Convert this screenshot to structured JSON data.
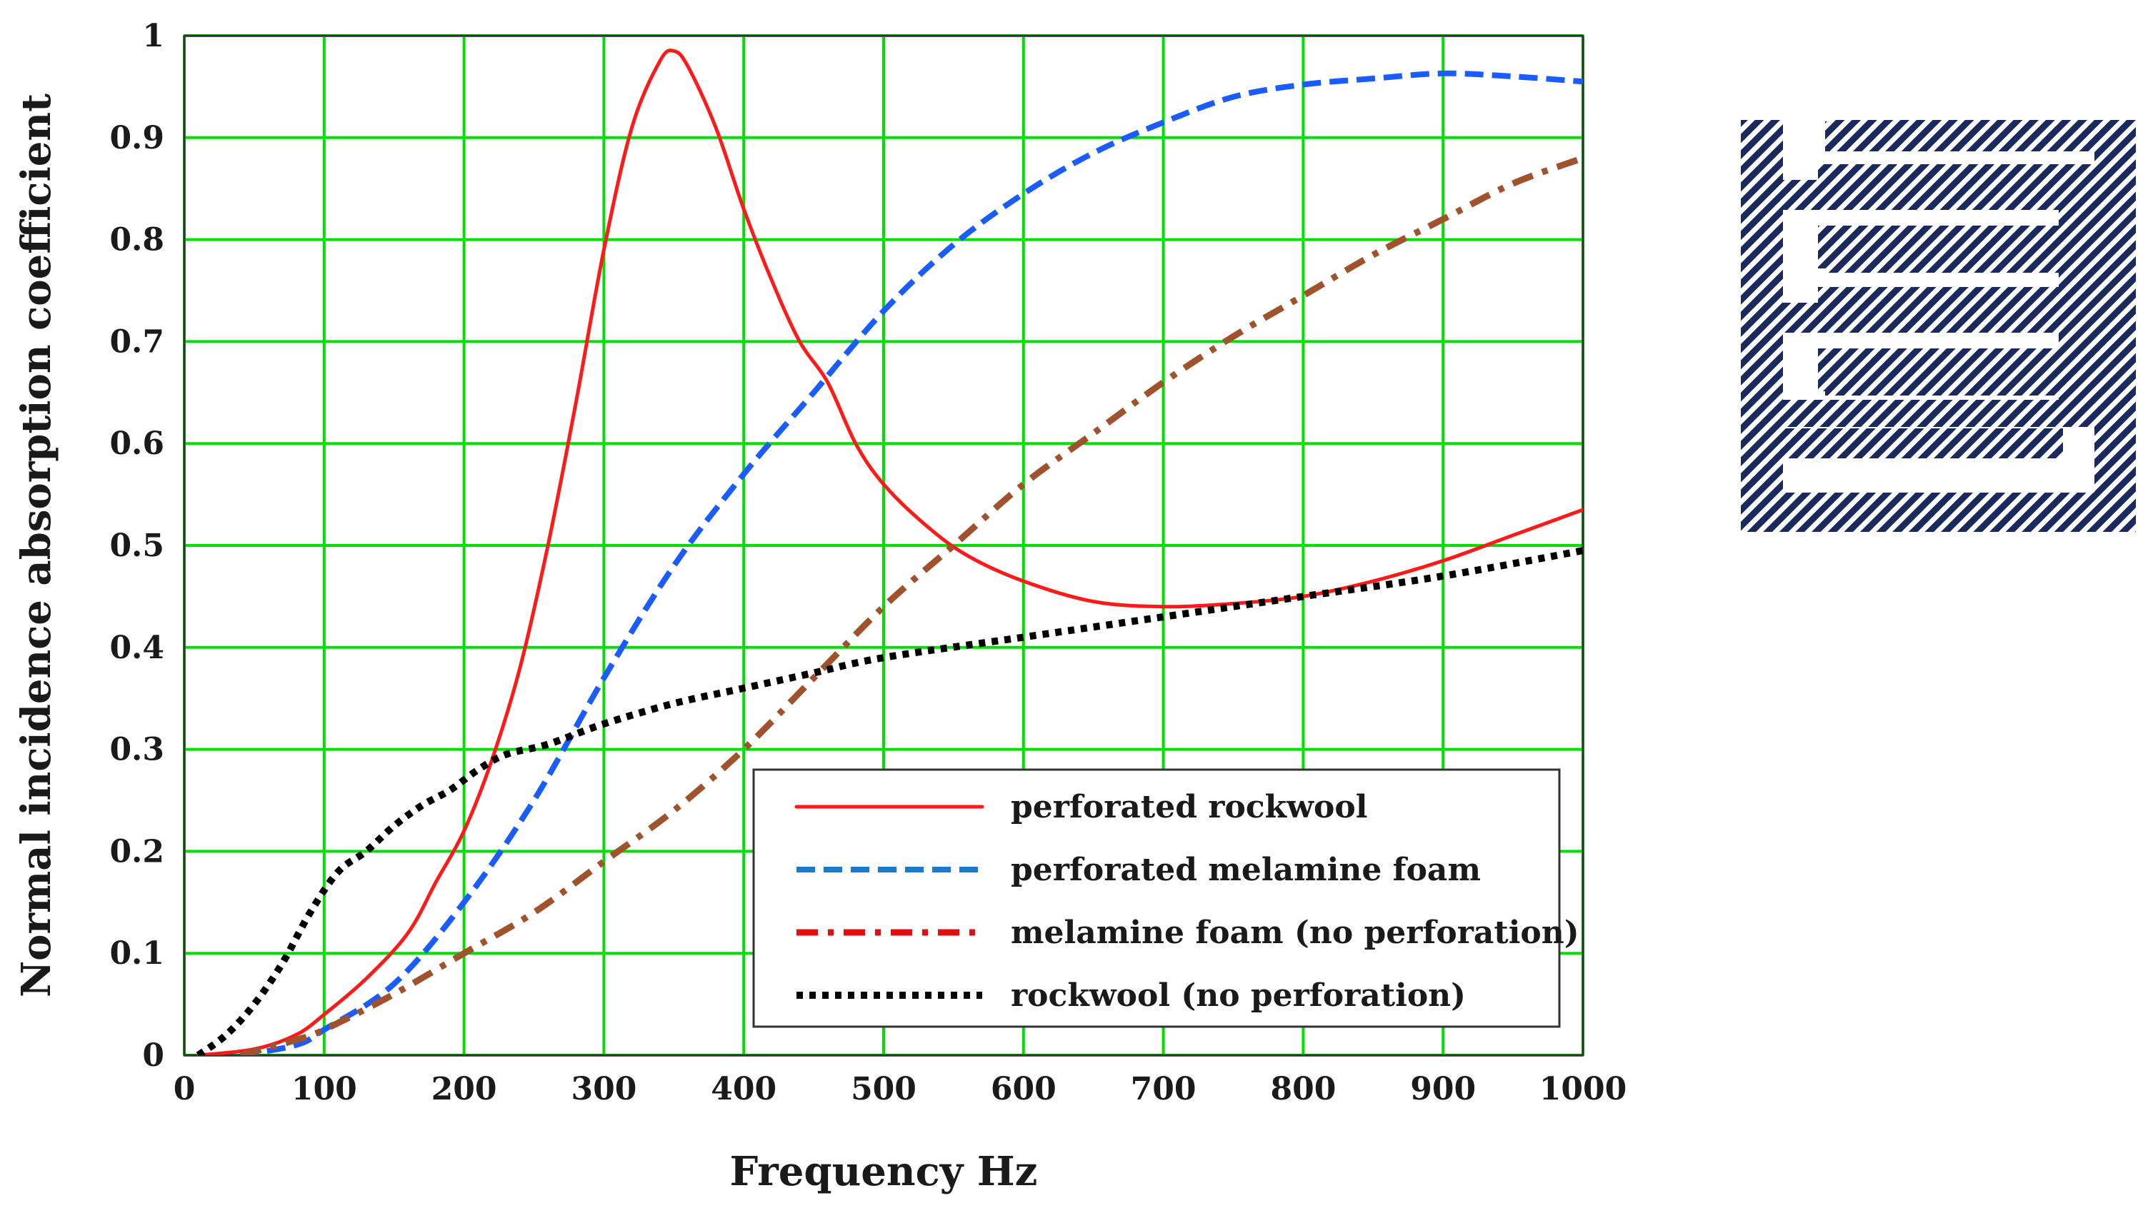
{
  "chart_data": {
    "type": "line",
    "title": "",
    "xlabel": "Frequency Hz",
    "ylabel": "Normal incidence absorption coefficient",
    "xlim": [
      0,
      1000
    ],
    "ylim": [
      0,
      1
    ],
    "xticks": [
      0,
      100,
      200,
      300,
      400,
      500,
      600,
      700,
      800,
      900,
      1000
    ],
    "yticks": [
      0,
      0.1,
      0.2,
      0.3,
      0.4,
      0.5,
      0.6,
      0.7,
      0.8,
      0.9,
      1
    ],
    "xtick_labels": [
      "0",
      "100",
      "200",
      "300",
      "400",
      "500",
      "600",
      "700",
      "800",
      "900",
      "1000"
    ],
    "ytick_labels": [
      "0",
      "0.1",
      "0.2",
      "0.3",
      "0.4",
      "0.5",
      "0.6",
      "0.7",
      "0.8",
      "0.9",
      "1"
    ],
    "grid": true,
    "grid_color": "#00e000",
    "legend_position": "bottom-right",
    "series": [
      {
        "name": "perforated rockwool",
        "color": "#ff1a1a",
        "dash": "solid",
        "points": [
          [
            10,
            0
          ],
          [
            50,
            0.006
          ],
          [
            80,
            0.02
          ],
          [
            100,
            0.04
          ],
          [
            130,
            0.075
          ],
          [
            160,
            0.12
          ],
          [
            180,
            0.17
          ],
          [
            200,
            0.22
          ],
          [
            220,
            0.29
          ],
          [
            240,
            0.38
          ],
          [
            260,
            0.5
          ],
          [
            280,
            0.64
          ],
          [
            300,
            0.79
          ],
          [
            320,
            0.91
          ],
          [
            340,
            0.975
          ],
          [
            350,
            0.985
          ],
          [
            360,
            0.97
          ],
          [
            380,
            0.91
          ],
          [
            400,
            0.83
          ],
          [
            420,
            0.76
          ],
          [
            440,
            0.7
          ],
          [
            460,
            0.66
          ],
          [
            480,
            0.6
          ],
          [
            500,
            0.56
          ],
          [
            530,
            0.52
          ],
          [
            560,
            0.49
          ],
          [
            600,
            0.465
          ],
          [
            650,
            0.445
          ],
          [
            700,
            0.44
          ],
          [
            750,
            0.443
          ],
          [
            800,
            0.45
          ],
          [
            850,
            0.465
          ],
          [
            900,
            0.485
          ],
          [
            950,
            0.51
          ],
          [
            1000,
            0.535
          ]
        ]
      },
      {
        "name": "perforated melamine foam",
        "color": "#1a5cff",
        "dash": "dashed",
        "points": [
          [
            40,
            0
          ],
          [
            80,
            0.01
          ],
          [
            100,
            0.025
          ],
          [
            150,
            0.07
          ],
          [
            200,
            0.15
          ],
          [
            250,
            0.25
          ],
          [
            300,
            0.37
          ],
          [
            350,
            0.48
          ],
          [
            400,
            0.57
          ],
          [
            450,
            0.65
          ],
          [
            500,
            0.73
          ],
          [
            550,
            0.795
          ],
          [
            600,
            0.845
          ],
          [
            650,
            0.885
          ],
          [
            700,
            0.915
          ],
          [
            750,
            0.94
          ],
          [
            800,
            0.952
          ],
          [
            850,
            0.958
          ],
          [
            900,
            0.963
          ],
          [
            950,
            0.96
          ],
          [
            1000,
            0.955
          ]
        ]
      },
      {
        "name": "melamine foam (no perforation)",
        "color": "#a0522d",
        "dash": "dashdot",
        "points": [
          [
            40,
            0
          ],
          [
            80,
            0.015
          ],
          [
            100,
            0.025
          ],
          [
            150,
            0.06
          ],
          [
            200,
            0.1
          ],
          [
            250,
            0.14
          ],
          [
            300,
            0.19
          ],
          [
            350,
            0.24
          ],
          [
            400,
            0.3
          ],
          [
            450,
            0.37
          ],
          [
            500,
            0.44
          ],
          [
            550,
            0.5
          ],
          [
            600,
            0.56
          ],
          [
            650,
            0.61
          ],
          [
            700,
            0.66
          ],
          [
            750,
            0.705
          ],
          [
            800,
            0.745
          ],
          [
            850,
            0.785
          ],
          [
            900,
            0.82
          ],
          [
            950,
            0.855
          ],
          [
            1000,
            0.88
          ]
        ]
      },
      {
        "name": "rockwool (no perforation)",
        "color": "#000000",
        "dash": "dotted",
        "points": [
          [
            10,
            0
          ],
          [
            30,
            0.02
          ],
          [
            50,
            0.05
          ],
          [
            70,
            0.09
          ],
          [
            90,
            0.14
          ],
          [
            110,
            0.18
          ],
          [
            130,
            0.2
          ],
          [
            150,
            0.225
          ],
          [
            170,
            0.245
          ],
          [
            190,
            0.26
          ],
          [
            210,
            0.28
          ],
          [
            230,
            0.295
          ],
          [
            260,
            0.305
          ],
          [
            300,
            0.325
          ],
          [
            350,
            0.345
          ],
          [
            400,
            0.36
          ],
          [
            450,
            0.375
          ],
          [
            500,
            0.39
          ],
          [
            600,
            0.41
          ],
          [
            700,
            0.43
          ],
          [
            800,
            0.45
          ],
          [
            900,
            0.47
          ],
          [
            1000,
            0.495
          ]
        ]
      }
    ]
  },
  "inset": {
    "pattern_color": "#1a2a5c",
    "description": "hatched zigzag absorber geometry"
  }
}
